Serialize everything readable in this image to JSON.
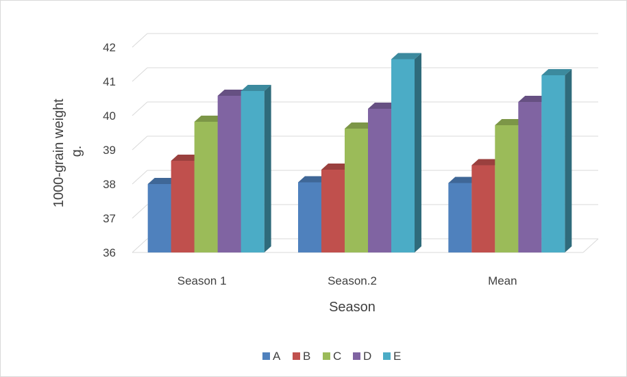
{
  "chart_data": {
    "type": "bar",
    "title": "",
    "xlabel": "Season",
    "ylabel_line1": "1000-grain weight",
    "ylabel_line2": "g.",
    "categories": [
      "Season 1",
      "Season.2",
      "Mean"
    ],
    "ylim": [
      36,
      42
    ],
    "yticks": [
      36,
      37,
      38,
      39,
      40,
      41,
      42
    ],
    "grid": true,
    "legend_position": "bottom",
    "series": [
      {
        "name": "A",
        "color": "#4f81bd",
        "values": [
          38.0,
          38.05,
          38.03
        ]
      },
      {
        "name": "B",
        "color": "#c0504d",
        "values": [
          38.68,
          38.42,
          38.55
        ]
      },
      {
        "name": "C",
        "color": "#9bbb59",
        "values": [
          39.82,
          39.62,
          39.72
        ]
      },
      {
        "name": "D",
        "color": "#8064a2",
        "values": [
          40.58,
          40.2,
          40.4
        ]
      },
      {
        "name": "E",
        "color": "#4bacc6",
        "values": [
          40.72,
          41.65,
          41.18
        ]
      }
    ]
  }
}
